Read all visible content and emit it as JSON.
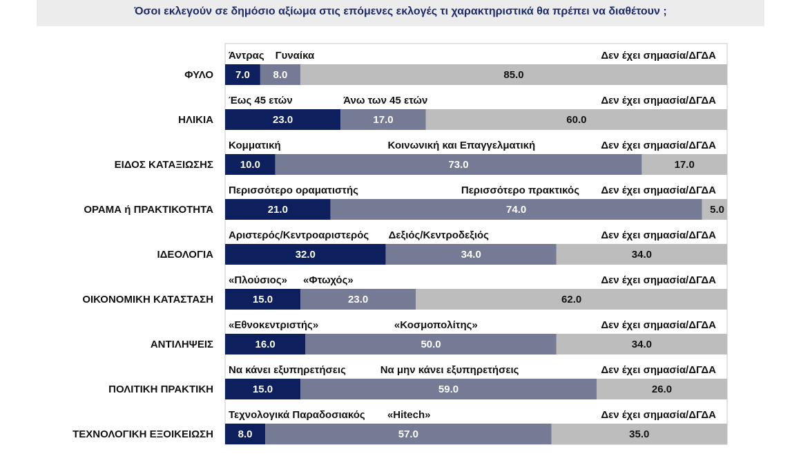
{
  "title": "Όσοι εκλεγούν σε δημόσιο αξίωμα στις επόμενες εκλογές τι χαρακτηριστικά θα πρέπει να διαθέτουν ;",
  "chart_data": {
    "type": "bar",
    "stacked": true,
    "orientation": "horizontal",
    "xlim": [
      0,
      100
    ],
    "colors": [
      "#0d1f5c",
      "#757b95",
      "#bdbdbd"
    ],
    "rows": [
      {
        "category": "ΦΥΛΟ",
        "labels": [
          "Άντρας",
          "Γυναίκα",
          "Δεν έχει σημασία/ΔΓΔΑ"
        ],
        "values": [
          7.0,
          8.0,
          85.0
        ],
        "value_labels": [
          "7.0",
          "8.0",
          "85.0"
        ]
      },
      {
        "category": "ΗΛΙΚΙΑ",
        "labels": [
          "Έως 45 ετών",
          "Άνω των 45 ετών",
          "Δεν έχει σημασία/ΔΓΔΑ"
        ],
        "values": [
          23.0,
          17.0,
          60.0
        ],
        "value_labels": [
          "23.0",
          "17.0",
          "60.0"
        ]
      },
      {
        "category": "ΕΙΔΟΣ ΚΑΤΑΞΙΩΣΗΣ",
        "labels": [
          "Κομματική",
          "Κοινωνική και Επαγγελματική",
          "Δεν έχει σημασία/ΔΓΔΑ"
        ],
        "values": [
          10.0,
          73.0,
          17.0
        ],
        "value_labels": [
          "10.0",
          "73.0",
          "17.0"
        ]
      },
      {
        "category": "ΟΡΑΜΑ ή ΠΡΑΚΤΙΚΟΤΗΤΑ",
        "labels": [
          "Περισσότερο οραματιστής",
          "Περισσότερο πρακτικός",
          "Δεν έχει σημασία/ΔΓΔΑ"
        ],
        "values": [
          21.0,
          74.0,
          5.0
        ],
        "value_labels": [
          "21.0",
          "74.0",
          "5.0"
        ]
      },
      {
        "category": "ΙΔΕΟΛΟΓΙΑ",
        "labels": [
          "Αριστερός/Κεντροαριστερός",
          "Δεξιός/Κεντροδεξιός",
          "Δεν έχει σημασία/ΔΓΔΑ"
        ],
        "values": [
          32.0,
          34.0,
          34.0
        ],
        "value_labels": [
          "32.0",
          "34.0",
          "34.0"
        ]
      },
      {
        "category": "ΟΙΚΟΝΟΜΙΚΗ ΚΑΤΑΣΤΑΣΗ",
        "labels": [
          "«Πλούσιος»",
          "«Φτωχός»",
          "Δεν έχει σημασία/ΔΓΔΑ"
        ],
        "values": [
          15.0,
          23.0,
          62.0
        ],
        "value_labels": [
          "15.0",
          "23.0",
          "62.0"
        ]
      },
      {
        "category": "ΑΝΤΙΛΗΨΕΙΣ",
        "labels": [
          "«Εθνοκεντριστής»",
          "«Κοσμοπολίτης»",
          "Δεν έχει σημασία/ΔΓΔΑ"
        ],
        "values": [
          16.0,
          50.0,
          34.0
        ],
        "value_labels": [
          "16.0",
          "50.0",
          "34.0"
        ]
      },
      {
        "category": "ΠΟΛΙΤΙΚΗ ΠΡΑΚΤΙΚΗ",
        "labels": [
          "Να κάνει εξυπηρετήσεις",
          "Να μην κάνει εξυπηρετήσεις",
          "Δεν έχει σημασία/ΔΓΔΑ"
        ],
        "values": [
          15.0,
          59.0,
          26.0
        ],
        "value_labels": [
          "15.0",
          "59.0",
          "26.0"
        ]
      },
      {
        "category": "ΤΕΧΝΟΛΟΓΙΚΗ ΕΞΟΙΚΕΙΩΣΗ",
        "labels": [
          "Τεχνολογικά Παραδοσιακός",
          "«Hitech»",
          "Δεν έχει σημασία/ΔΓΔΑ"
        ],
        "values": [
          8.0,
          57.0,
          35.0
        ],
        "value_labels": [
          "8.0",
          "57.0",
          "35.0"
        ]
      }
    ]
  }
}
